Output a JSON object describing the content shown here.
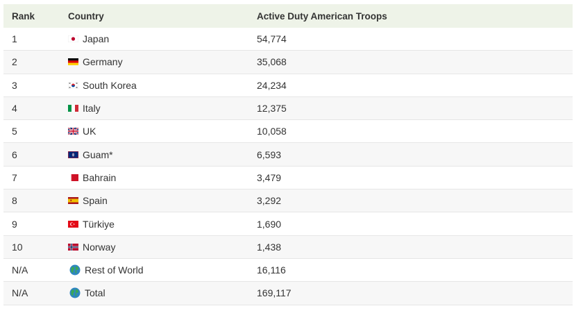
{
  "headers": {
    "rank": "Rank",
    "country": "Country",
    "troops": "Active Duty American Troops"
  },
  "rows": [
    {
      "rank": "1",
      "country": "Japan",
      "troops": "54,774",
      "icon": "japan-flag-icon"
    },
    {
      "rank": "2",
      "country": "Germany",
      "troops": "35,068",
      "icon": "germany-flag-icon"
    },
    {
      "rank": "3",
      "country": "South Korea",
      "troops": "24,234",
      "icon": "south-korea-flag-icon"
    },
    {
      "rank": "4",
      "country": "Italy",
      "troops": "12,375",
      "icon": "italy-flag-icon"
    },
    {
      "rank": "5",
      "country": "UK",
      "troops": "10,058",
      "icon": "uk-flag-icon"
    },
    {
      "rank": "6",
      "country": "Guam*",
      "troops": "6,593",
      "icon": "guam-flag-icon"
    },
    {
      "rank": "7",
      "country": "Bahrain",
      "troops": "3,479",
      "icon": "bahrain-flag-icon"
    },
    {
      "rank": "8",
      "country": "Spain",
      "troops": "3,292",
      "icon": "spain-flag-icon"
    },
    {
      "rank": "9",
      "country": "Türkiye",
      "troops": "1,690",
      "icon": "turkiye-flag-icon"
    },
    {
      "rank": "10",
      "country": "Norway",
      "troops": "1,438",
      "icon": "norway-flag-icon"
    },
    {
      "rank": "N/A",
      "country": "Rest of World",
      "troops": "16,116",
      "icon": "globe-icon"
    },
    {
      "rank": "N/A",
      "country": "Total",
      "troops": "169,117",
      "icon": "globe-icon"
    }
  ],
  "colors": {
    "header_bg": "#eef3e8",
    "alt_row_bg": "#f7f7f7",
    "text": "#333333"
  }
}
